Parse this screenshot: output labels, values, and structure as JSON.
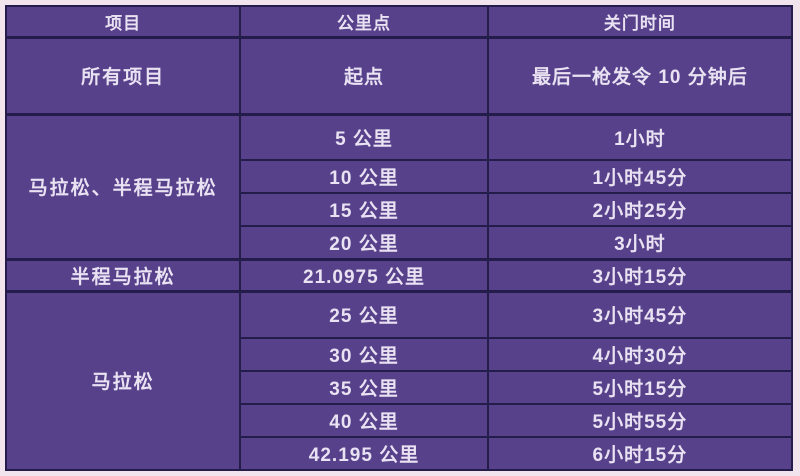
{
  "chart_data": {
    "type": "table",
    "columns": [
      "项目",
      "公里点",
      "关门时间"
    ],
    "groups": [
      {
        "event": "所有项目",
        "rows": [
          [
            "起点",
            "最后一枪发令 10 分钟后"
          ]
        ]
      },
      {
        "event": "马拉松、半程马拉松",
        "rows": [
          [
            "5 公里",
            "1小时"
          ],
          [
            "10 公里",
            "1小时45分"
          ],
          [
            "15 公里",
            "2小时25分"
          ],
          [
            "20 公里",
            "3小时"
          ]
        ]
      },
      {
        "event": "半程马拉松",
        "rows": [
          [
            "21.0975 公里",
            "3小时15分"
          ]
        ]
      },
      {
        "event": "马拉松",
        "rows": [
          [
            "25 公里",
            "3小时45分"
          ],
          [
            "30 公里",
            "4小时30分"
          ],
          [
            "35 公里",
            "5小时15分"
          ],
          [
            "40 公里",
            "5小时55分"
          ],
          [
            "42.195 公里",
            "6小时15分"
          ]
        ]
      }
    ]
  },
  "colors": {
    "page_bg": "#f2e4ec",
    "cell_bg": "#57418b",
    "border": "#241c4a",
    "text": "#e9e2f2"
  }
}
